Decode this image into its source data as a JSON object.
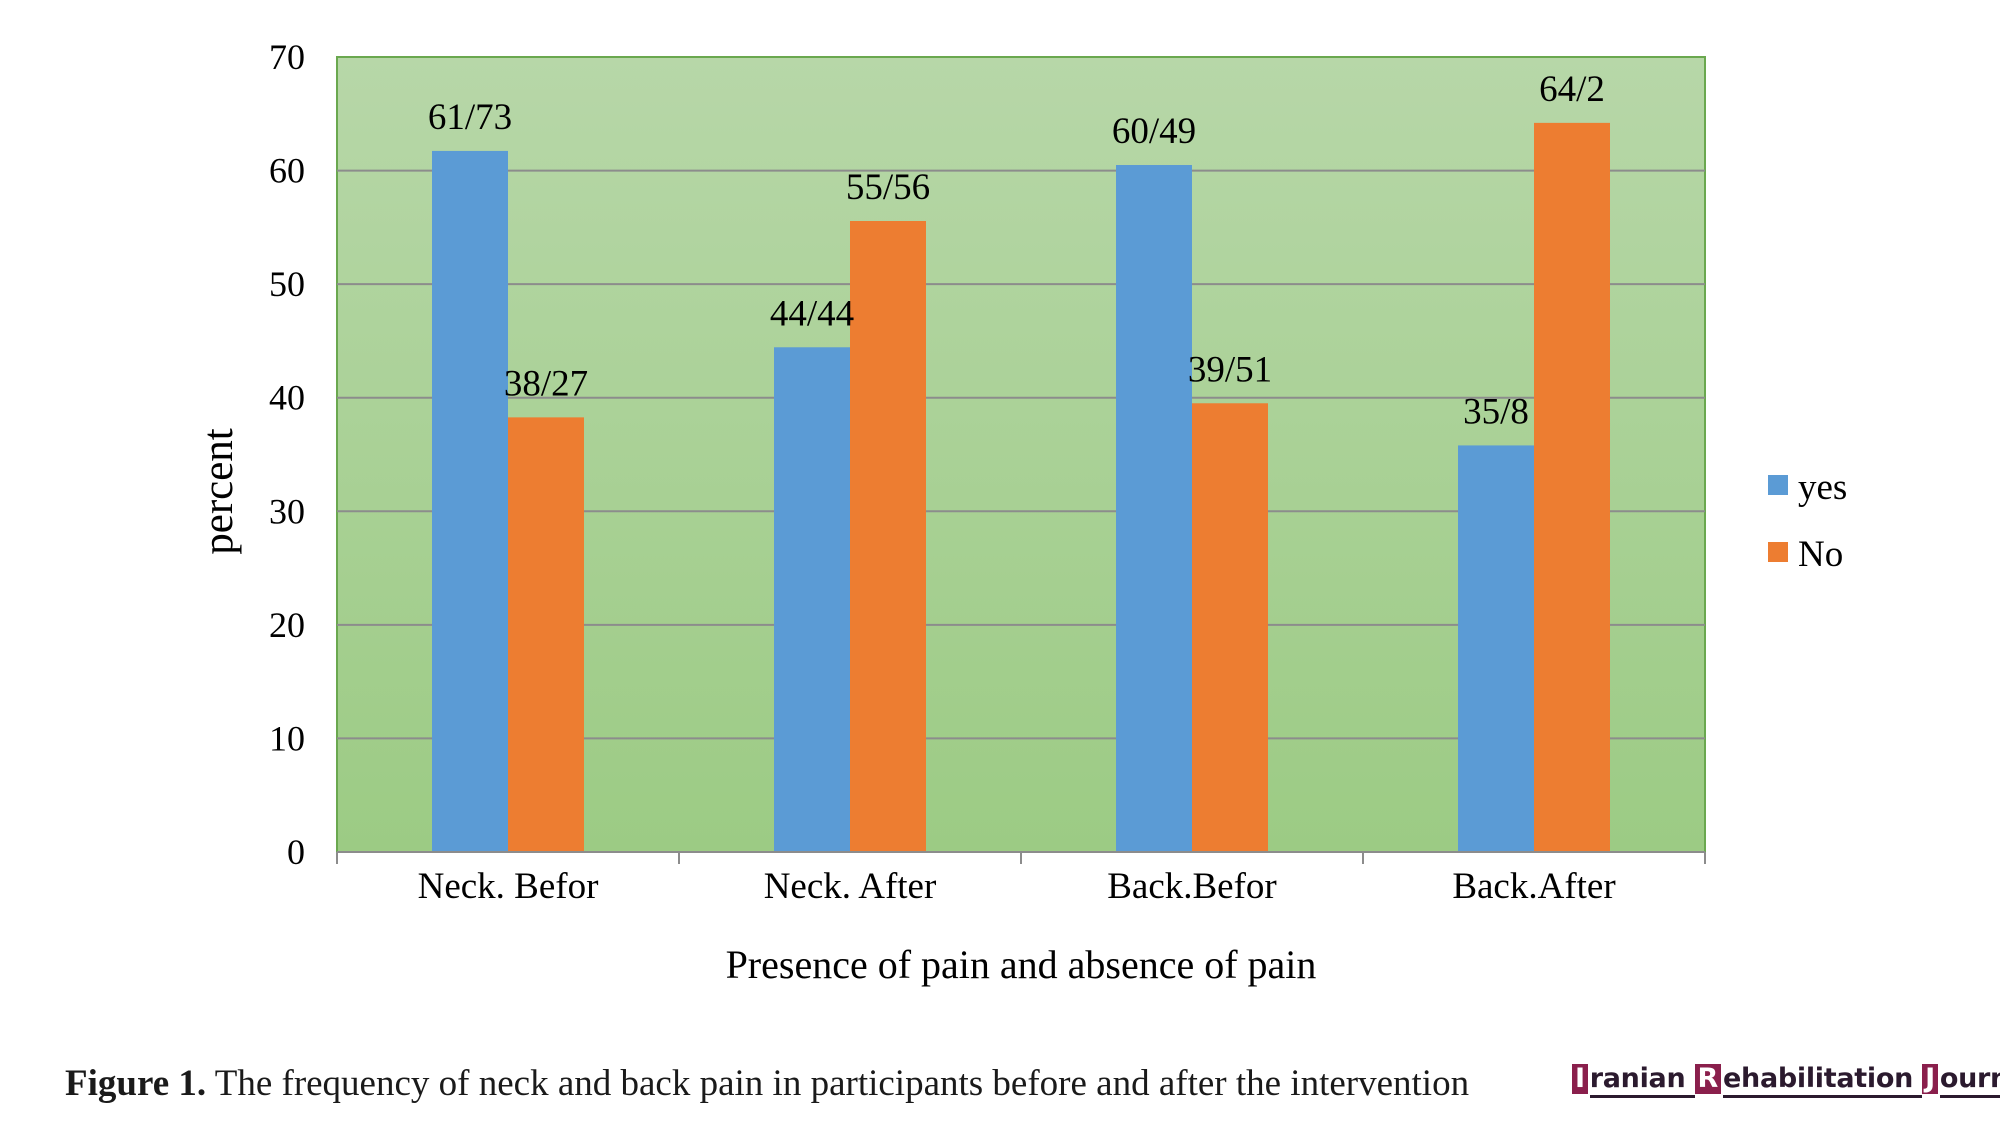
{
  "chart_data": {
    "type": "bar",
    "categories": [
      "Neck. Befor",
      "Neck. After",
      "Back.Befor",
      "Back.After"
    ],
    "series": [
      {
        "name": "yes",
        "color": "#5B9BD5",
        "values": [
          61.73,
          44.44,
          60.49,
          35.8
        ],
        "labels": [
          "61/73",
          "44/44",
          "60/49",
          "35/8"
        ]
      },
      {
        "name": "No",
        "color": "#ED7D31",
        "values": [
          38.27,
          55.56,
          39.51,
          64.2
        ],
        "labels": [
          "38/27",
          "55/56",
          "39/51",
          "64/2"
        ]
      }
    ],
    "xlabel": "Presence of pain and absence of pain",
    "ylabel": "percent",
    "ylim": [
      0,
      70
    ],
    "yticks": [
      "0",
      "10",
      "20",
      "30",
      "40",
      "50",
      "60",
      "70"
    ],
    "grid": true,
    "legend": "right",
    "plot_background": [
      "#B7D7A8",
      "#9CCB84"
    ],
    "plot_border_color": "#6AA84F"
  },
  "caption": {
    "label": "Figure 1.",
    "text": " The frequency of neck and back pain in participants before and after the intervention"
  },
  "journal": {
    "i_letter": "I",
    "i_rest": "ranian ",
    "r_letter": "R",
    "r_rest": "ehabilitation ",
    "j_letter": "J",
    "j_rest": "ournal"
  }
}
